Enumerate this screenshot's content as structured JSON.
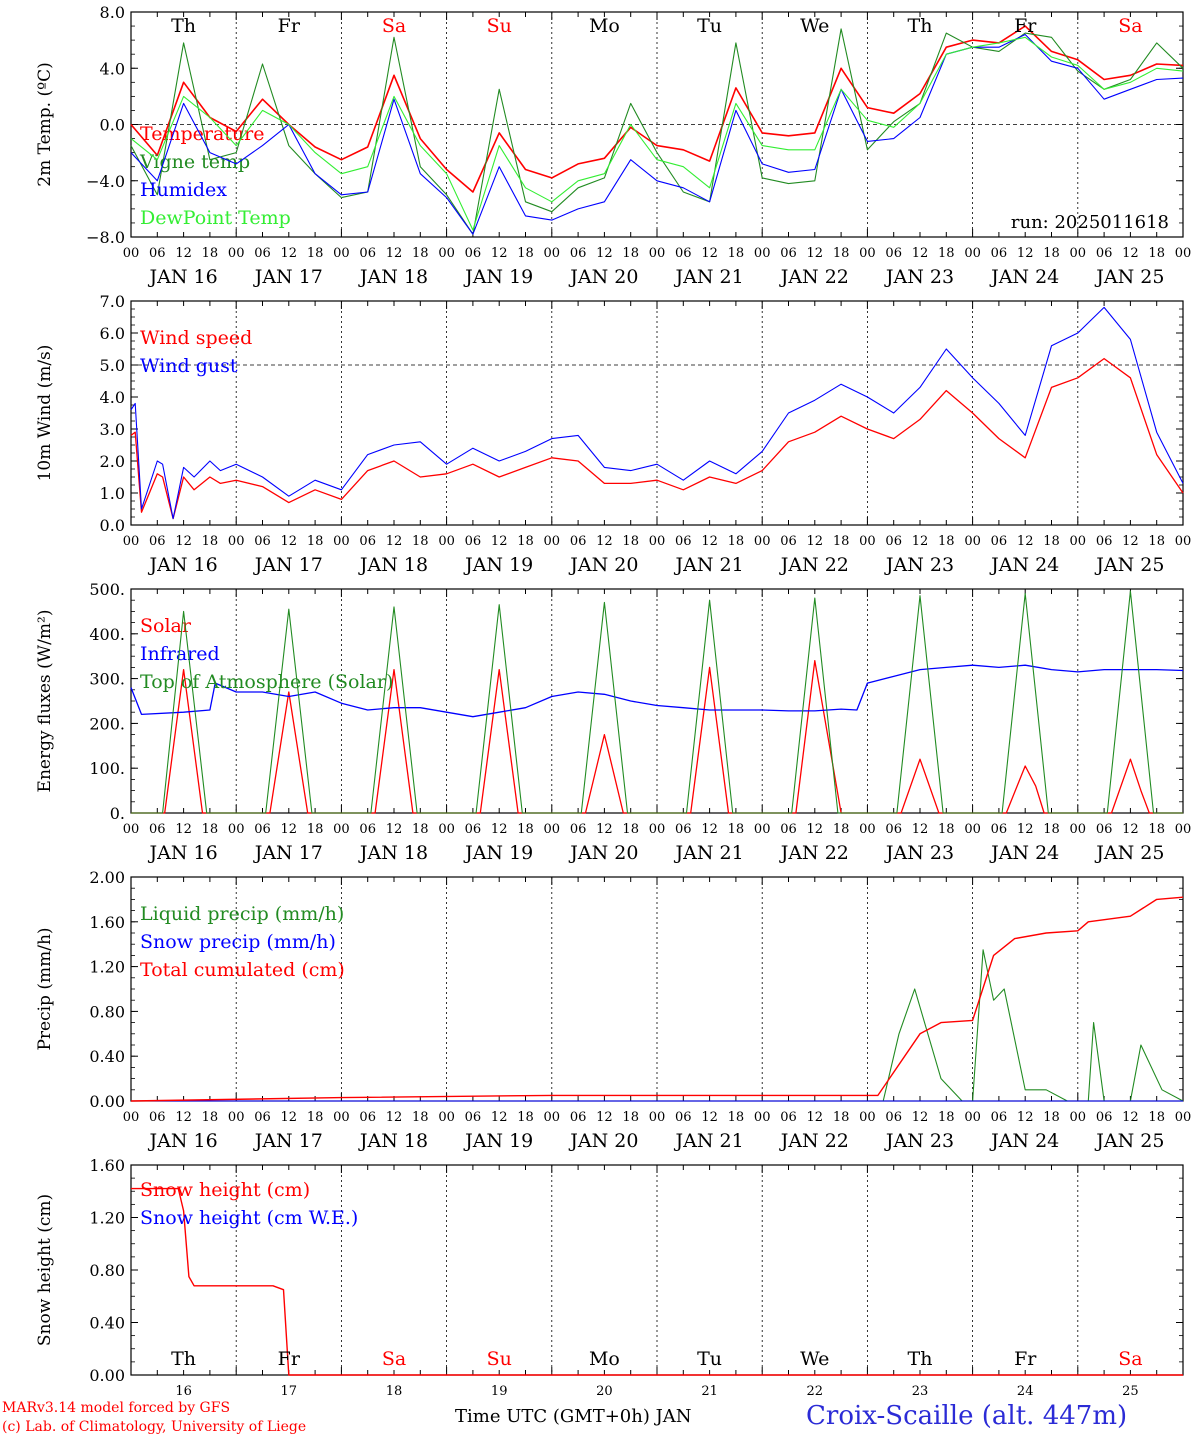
{
  "footer": {
    "credit1": "MARv3.14 model forced by GFS",
    "credit2": "(c) Lab. of Climatology, University of Liege",
    "xlabel": "Time UTC (GMT+0h) JAN",
    "station": "Croix-Scaille (alt. 447m)",
    "colors": {
      "credit": "#ff0000",
      "station": "#2b2bd6",
      "xlabel": "#000000"
    }
  },
  "days": [
    "Th",
    "Fr",
    "Sa",
    "Su",
    "Mo",
    "Tu",
    "We",
    "Th",
    "Fr",
    "Sa"
  ],
  "weekend_days": [
    2,
    3,
    9
  ],
  "date_labels": [
    "JAN 16",
    "JAN 17",
    "JAN 18",
    "JAN 19",
    "JAN 20",
    "JAN 21",
    "JAN 22",
    "JAN 23",
    "JAN 24",
    "JAN 25"
  ],
  "bottom_day_numbers": [
    "16",
    "17",
    "18",
    "19",
    "20",
    "21",
    "22",
    "23",
    "24",
    "25"
  ],
  "hour_ticks": [
    "00",
    "06",
    "12",
    "18"
  ],
  "hour_final": "00",
  "run_label": "run: 2025011618",
  "chart_data": [
    {
      "type": "line",
      "ylabel": "2m Temp. (ºC)",
      "ylim": [
        -8,
        8
      ],
      "yticks": [
        "8.0",
        "4.0",
        "0.0",
        "−4.0",
        "−8.0"
      ],
      "ytick_values": [
        8,
        4,
        0,
        -4,
        -8
      ],
      "dashed_y": [
        0
      ],
      "show_days_top": true,
      "series": [
        {
          "name": "Temperature",
          "color": "#ff0000",
          "width": 1.6,
          "x": [
            0,
            0.25,
            0.5,
            0.75,
            1,
            1.25,
            1.5,
            1.75,
            2,
            2.25,
            2.5,
            2.75,
            3,
            3.25,
            3.5,
            3.75,
            4,
            4.25,
            4.5,
            4.75,
            5,
            5.25,
            5.5,
            5.75,
            6,
            6.25,
            6.5,
            6.75,
            7,
            7.25,
            7.5,
            7.75,
            8,
            8.25,
            8.5,
            8.75,
            9,
            9.25,
            9.5,
            9.75,
            10
          ],
          "y": [
            0,
            -2.2,
            3,
            0.5,
            -0.5,
            1.8,
            0,
            -1.6,
            -2.5,
            -1.6,
            3.5,
            -1,
            -3.2,
            -4.8,
            -0.6,
            -3.2,
            -3.8,
            -2.8,
            -2.4,
            -0.2,
            -1.5,
            -1.8,
            -2.6,
            2.6,
            -0.6,
            -0.8,
            -0.6,
            4,
            1.2,
            0.8,
            2.2,
            5.5,
            6,
            5.8,
            7,
            5.2,
            4.6,
            3.2,
            3.5,
            4.3,
            4.2
          ]
        },
        {
          "name": "Vigne temp",
          "color": "#228b22",
          "width": 1.1,
          "x": [
            0,
            0.25,
            0.5,
            0.75,
            1,
            1.25,
            1.5,
            1.75,
            2,
            2.25,
            2.5,
            2.75,
            3,
            3.25,
            3.5,
            3.75,
            4,
            4.25,
            4.5,
            4.75,
            5,
            5.25,
            5.5,
            5.75,
            6,
            6.25,
            6.5,
            6.75,
            7,
            7.25,
            7.5,
            7.75,
            8,
            8.25,
            8.5,
            8.75,
            9,
            9.25,
            9.5,
            9.75,
            10
          ],
          "y": [
            -1.5,
            -5,
            5.8,
            -2.5,
            -2,
            4.3,
            -1.5,
            -3.5,
            -5.2,
            -4.8,
            6.2,
            -3,
            -5,
            -7.8,
            2.5,
            -5.5,
            -6.2,
            -4.5,
            -3.8,
            1.5,
            -2,
            -4.8,
            -5.5,
            5.8,
            -3.8,
            -4.2,
            -4,
            6.8,
            -1.8,
            0.2,
            1.5,
            6.5,
            5.5,
            5.2,
            6.5,
            6.2,
            3.8,
            2.5,
            3.2,
            5.8,
            4
          ]
        },
        {
          "name": "Humidex",
          "color": "#0000ff",
          "width": 1.1,
          "x": [
            0,
            0.25,
            0.5,
            0.75,
            1,
            1.25,
            1.5,
            1.75,
            2,
            2.25,
            2.5,
            2.75,
            3,
            3.25,
            3.5,
            3.75,
            4,
            4.25,
            4.5,
            4.75,
            5,
            5.25,
            5.5,
            5.75,
            6,
            6.25,
            6.5,
            6.75,
            7,
            7.25,
            7.5,
            7.75,
            8,
            8.25,
            8.5,
            8.75,
            9,
            9.25,
            9.5,
            9.75,
            10
          ],
          "y": [
            -2,
            -4,
            1.5,
            -2,
            -2.8,
            -1.5,
            0,
            -3.5,
            -5,
            -4.8,
            1.8,
            -3.5,
            -5.2,
            -7.8,
            -3,
            -6.5,
            -6.8,
            -6,
            -5.5,
            -2.5,
            -4,
            -4.5,
            -5.5,
            1,
            -2.8,
            -3.4,
            -3.2,
            2.5,
            -1.2,
            -1,
            0.5,
            5,
            5.5,
            5.5,
            6.4,
            4.5,
            4,
            1.8,
            2.5,
            3.2,
            3.3
          ]
        },
        {
          "name": "DewPoint Temp",
          "color": "#33ee33",
          "width": 1.1,
          "x": [
            0,
            0.25,
            0.5,
            0.75,
            1,
            1.25,
            1.5,
            1.75,
            2,
            2.25,
            2.5,
            2.75,
            3,
            3.25,
            3.5,
            3.75,
            4,
            4.25,
            4.5,
            4.75,
            5,
            5.25,
            5.5,
            5.75,
            6,
            6.25,
            6.5,
            6.75,
            7,
            7.25,
            7.5,
            7.75,
            8,
            8.25,
            8.5,
            8.75,
            9,
            9.25,
            9.5,
            9.75,
            10
          ],
          "y": [
            -1,
            -2.5,
            2,
            0.5,
            -1.5,
            1,
            0,
            -2,
            -3.5,
            -3,
            2,
            -1.5,
            -3.5,
            -7.5,
            -1.5,
            -4.5,
            -5.5,
            -4,
            -3.5,
            0,
            -2.5,
            -3,
            -4.5,
            1.5,
            -1.5,
            -1.8,
            -1.8,
            2.5,
            0.3,
            -0.2,
            1.5,
            5,
            5.5,
            5.8,
            6.2,
            4.8,
            4.2,
            2.5,
            3,
            4,
            3.8
          ]
        }
      ]
    },
    {
      "type": "line",
      "ylabel": "10m Wind (m/s)",
      "ylim": [
        0,
        7
      ],
      "yticks": [
        "7.0",
        "6.0",
        "5.0",
        "4.0",
        "3.0",
        "2.0",
        "1.0",
        "0.0"
      ],
      "ytick_values": [
        7,
        6,
        5,
        4,
        3,
        2,
        1,
        0
      ],
      "dashed_y": [
        5
      ],
      "show_days_top": false,
      "series": [
        {
          "name": "Wind speed",
          "color": "#ff0000",
          "width": 1.3,
          "x": [
            0,
            0.04,
            0.1,
            0.25,
            0.3,
            0.4,
            0.5,
            0.6,
            0.75,
            0.85,
            1,
            1.25,
            1.5,
            1.75,
            2,
            2.25,
            2.5,
            2.75,
            3,
            3.25,
            3.5,
            3.75,
            4,
            4.25,
            4.5,
            4.75,
            5,
            5.25,
            5.5,
            5.75,
            6,
            6.25,
            6.5,
            6.75,
            7,
            7.25,
            7.5,
            7.75,
            8,
            8.25,
            8.5,
            8.75,
            9,
            9.25,
            9.5,
            9.75,
            10
          ],
          "y": [
            2.8,
            2.9,
            0.4,
            1.6,
            1.5,
            0.2,
            1.5,
            1.1,
            1.5,
            1.3,
            1.4,
            1.2,
            0.7,
            1.1,
            0.8,
            1.7,
            2,
            1.5,
            1.6,
            1.9,
            1.5,
            1.8,
            2.1,
            2.0,
            1.3,
            1.3,
            1.4,
            1.1,
            1.5,
            1.3,
            1.7,
            2.6,
            2.9,
            3.4,
            3.0,
            2.7,
            3.3,
            4.2,
            3.5,
            2.7,
            2.1,
            4.3,
            4.6,
            5.2,
            4.6,
            2.2,
            1.0
          ]
        },
        {
          "name": "Wind gust",
          "color": "#0000ff",
          "width": 1.1,
          "x": [
            0,
            0.04,
            0.1,
            0.25,
            0.3,
            0.4,
            0.5,
            0.6,
            0.75,
            0.85,
            1,
            1.25,
            1.5,
            1.75,
            2,
            2.25,
            2.5,
            2.75,
            3,
            3.25,
            3.5,
            3.75,
            4,
            4.25,
            4.5,
            4.75,
            5,
            5.25,
            5.5,
            5.75,
            6,
            6.25,
            6.5,
            6.75,
            7,
            7.25,
            7.5,
            7.75,
            8,
            8.25,
            8.5,
            8.75,
            9,
            9.25,
            9.5,
            9.75,
            10
          ],
          "y": [
            3.6,
            3.8,
            0.5,
            2.0,
            1.9,
            0.2,
            1.8,
            1.5,
            2.0,
            1.7,
            1.9,
            1.5,
            0.9,
            1.4,
            1.1,
            2.2,
            2.5,
            2.6,
            1.9,
            2.4,
            2.0,
            2.3,
            2.7,
            2.8,
            1.8,
            1.7,
            1.9,
            1.4,
            2.0,
            1.6,
            2.3,
            3.5,
            3.9,
            4.4,
            4.0,
            3.5,
            4.3,
            5.5,
            4.6,
            3.8,
            2.8,
            5.6,
            6.0,
            6.8,
            5.8,
            2.9,
            1.3
          ]
        }
      ]
    },
    {
      "type": "line",
      "ylabel": "Energy fluxes (W/m²)",
      "ylim": [
        0,
        500
      ],
      "yticks": [
        "500.",
        "400.",
        "300.",
        "200.",
        "100.",
        "0."
      ],
      "ytick_values": [
        500,
        400,
        300,
        200,
        100,
        0
      ],
      "dashed_y": [],
      "show_days_top": false,
      "series": [
        {
          "name": "Solar",
          "color": "#ff0000",
          "width": 1.3,
          "x": [
            0,
            0.32,
            0.5,
            0.68,
            1.32,
            1.5,
            1.68,
            2.32,
            2.5,
            2.68,
            3.32,
            3.5,
            3.68,
            4.32,
            4.5,
            4.68,
            5.32,
            5.5,
            5.68,
            6.32,
            6.5,
            6.75,
            7.32,
            7.5,
            7.68,
            8.32,
            8.5,
            8.6,
            8.68,
            9.32,
            9.5,
            9.6,
            9.68,
            10
          ],
          "y": [
            0,
            0,
            320,
            0,
            0,
            270,
            0,
            0,
            320,
            0,
            0,
            320,
            0,
            0,
            175,
            0,
            0,
            325,
            0,
            0,
            340,
            0,
            0,
            120,
            0,
            0,
            105,
            60,
            0,
            0,
            120,
            50,
            0,
            0
          ]
        },
        {
          "name": "Infrared",
          "color": "#0000ff",
          "width": 1.3,
          "x": [
            0,
            0.1,
            0.5,
            0.75,
            0.8,
            1,
            1.25,
            1.5,
            1.75,
            2,
            2.25,
            2.5,
            2.75,
            3,
            3.25,
            3.5,
            3.75,
            4,
            4.25,
            4.5,
            4.75,
            5,
            5.25,
            5.5,
            5.75,
            6,
            6.25,
            6.5,
            6.75,
            6.9,
            7,
            7.25,
            7.5,
            7.75,
            8,
            8.25,
            8.5,
            8.75,
            9,
            9.25,
            9.5,
            9.75,
            10
          ],
          "y": [
            280,
            220,
            225,
            230,
            290,
            270,
            270,
            260,
            270,
            245,
            230,
            235,
            235,
            225,
            215,
            225,
            235,
            260,
            270,
            265,
            250,
            240,
            235,
            230,
            230,
            230,
            228,
            228,
            232,
            230,
            290,
            305,
            320,
            325,
            330,
            325,
            330,
            320,
            315,
            320,
            320,
            320,
            318
          ]
        },
        {
          "name": "Top of Atmosphere (Solar)",
          "color": "#228b22",
          "width": 1.1,
          "x": [
            0,
            0.3,
            0.5,
            0.72,
            1.28,
            1.5,
            1.72,
            2.28,
            2.5,
            2.72,
            3.28,
            3.5,
            3.72,
            4.28,
            4.5,
            4.72,
            5.28,
            5.5,
            5.72,
            6.28,
            6.5,
            6.72,
            7.28,
            7.5,
            7.72,
            8.28,
            8.5,
            8.72,
            9.28,
            9.5,
            9.72,
            10
          ],
          "y": [
            0,
            0,
            450,
            0,
            0,
            455,
            0,
            0,
            460,
            0,
            0,
            465,
            0,
            0,
            470,
            0,
            0,
            475,
            0,
            0,
            480,
            0,
            0,
            485,
            0,
            0,
            490,
            0,
            0,
            495,
            0,
            0
          ]
        }
      ]
    },
    {
      "type": "line",
      "ylabel": "Precip (mm/h)",
      "ylim": [
        0,
        2
      ],
      "yticks": [
        "2.00",
        "1.60",
        "1.20",
        "0.80",
        "0.40",
        "0.00"
      ],
      "ytick_values": [
        2,
        1.6,
        1.2,
        0.8,
        0.4,
        0
      ],
      "dashed_y": [],
      "show_days_top": false,
      "series": [
        {
          "name": "Liquid precip (mm/h)",
          "color": "#228b22",
          "width": 1.1,
          "x": [
            0,
            7.15,
            7.3,
            7.45,
            7.7,
            7.9,
            8.0,
            8.1,
            8.2,
            8.3,
            8.5,
            8.7,
            8.9,
            9.1,
            9.15,
            9.25,
            9.5,
            9.6,
            9.8,
            10
          ],
          "y": [
            0,
            0,
            0.6,
            1.0,
            0.2,
            0,
            0,
            1.35,
            0.9,
            1.0,
            0.1,
            0.1,
            0,
            0,
            0.7,
            0,
            0,
            0.5,
            0.1,
            0
          ]
        },
        {
          "name": "Snow precip (mm/h)",
          "color": "#0000ff",
          "width": 1.1,
          "x": [
            0,
            10
          ],
          "y": [
            0,
            0
          ]
        },
        {
          "name": "Total cumulated (cm)",
          "color": "#ff0000",
          "width": 1.4,
          "x": [
            0,
            2,
            4,
            7.1,
            7.5,
            7.7,
            8.0,
            8.2,
            8.4,
            8.7,
            9.0,
            9.1,
            9.5,
            9.75,
            10
          ],
          "y": [
            0,
            0.03,
            0.05,
            0.05,
            0.6,
            0.7,
            0.72,
            1.3,
            1.45,
            1.5,
            1.52,
            1.6,
            1.65,
            1.8,
            1.82
          ]
        }
      ]
    },
    {
      "type": "line",
      "ylabel": "Snow height (cm)",
      "ylim": [
        0,
        1.6
      ],
      "yticks": [
        "1.60",
        "1.20",
        "0.80",
        "0.40",
        "0.00"
      ],
      "ytick_values": [
        1.6,
        1.2,
        0.8,
        0.4,
        0
      ],
      "dashed_y": [],
      "show_days_top": false,
      "days_inside": true,
      "series": [
        {
          "name": "Snow height (cm)",
          "color": "#ff0000",
          "width": 1.4,
          "x": [
            0,
            0.45,
            0.5,
            0.55,
            0.6,
            1.35,
            1.45,
            1.5,
            10
          ],
          "y": [
            1.42,
            1.42,
            1.25,
            0.75,
            0.68,
            0.68,
            0.65,
            0,
            0
          ]
        },
        {
          "name": "Snow height (cm W.E.)",
          "color": "#0000ff",
          "width": 1.1,
          "x": [],
          "y": []
        }
      ]
    }
  ]
}
